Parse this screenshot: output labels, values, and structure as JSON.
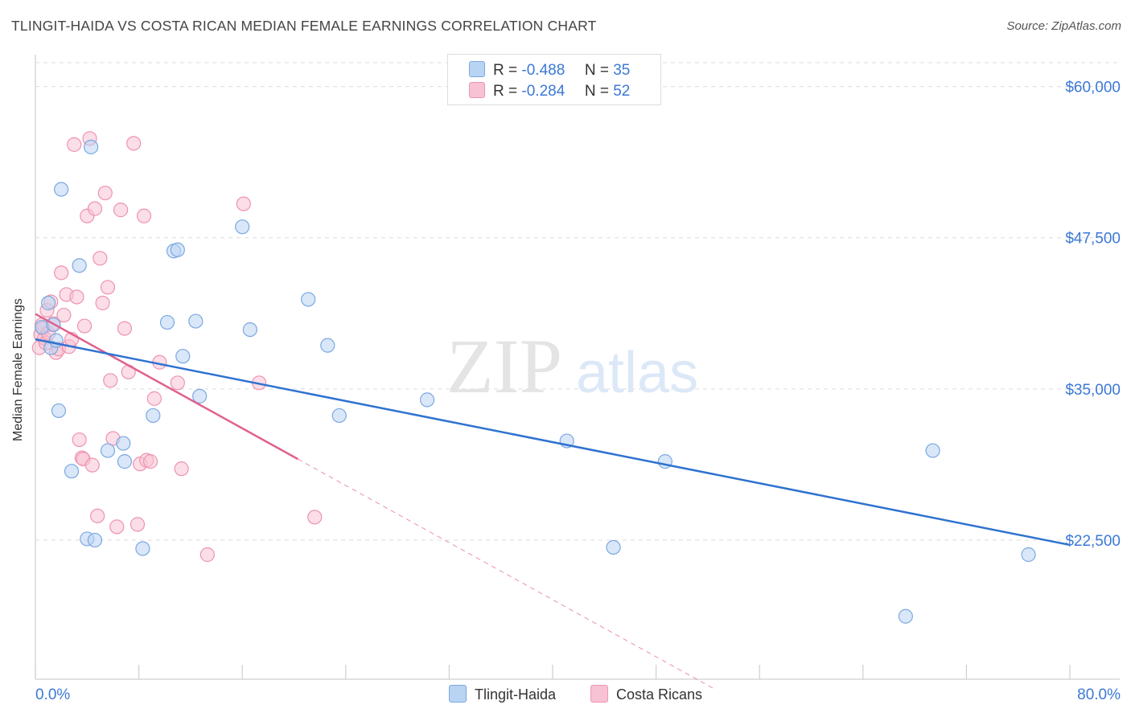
{
  "title": "TLINGIT-HAIDA VS COSTA RICAN MEDIAN FEMALE EARNINGS CORRELATION CHART",
  "source": "Source: ZipAtlas.com",
  "watermark": {
    "zip": "ZIP",
    "atlas": "atlas"
  },
  "legend": {
    "r_label": "R =",
    "n_label": "N =",
    "rows": [
      {
        "r": "-0.488",
        "n": "35"
      },
      {
        "r": "-0.284",
        "n": "52"
      }
    ]
  },
  "bottom_legend": {
    "series1": "Tlingit-Haida",
    "series2": "Costa Ricans"
  },
  "colors": {
    "blue_fill": "#b9d3f3",
    "blue_stroke": "#7ba8e2",
    "blue_line": "#2f72d0",
    "pink_fill": "#f7c3d4",
    "pink_stroke": "#ee93b0",
    "pink_line": "#e0618e",
    "axis_text": "#3b78d6"
  },
  "chart_data": {
    "type": "scatter",
    "title": "TLINGIT-HAIDA VS COSTA RICAN MEDIAN FEMALE EARNINGS CORRELATION CHART",
    "xlabel": "",
    "ylabel": "Median Female Earnings",
    "xlim": [
      0,
      80
    ],
    "ylim": [
      11000,
      62500
    ],
    "x_tick_labels": [
      "0.0%",
      "80.0%"
    ],
    "y_ticks": [
      {
        "value": 22500,
        "label": "$22,500"
      },
      {
        "value": 35000,
        "label": "$35,000"
      },
      {
        "value": 47500,
        "label": "$47,500"
      },
      {
        "value": 60000,
        "label": "$60,000"
      }
    ],
    "series": [
      {
        "name": "Tlingit-Haida",
        "r": -0.488,
        "n": 35,
        "trend": {
          "x": [
            0,
            80
          ],
          "y": [
            39100,
            22100
          ]
        },
        "points": [
          [
            0.5,
            40100
          ],
          [
            1.0,
            42100
          ],
          [
            1.2,
            38400
          ],
          [
            1.4,
            40300
          ],
          [
            1.6,
            39000
          ],
          [
            1.8,
            33200
          ],
          [
            2.0,
            51500
          ],
          [
            2.8,
            28200
          ],
          [
            3.4,
            45200
          ],
          [
            4.0,
            22600
          ],
          [
            4.3,
            55000
          ],
          [
            4.6,
            22500
          ],
          [
            5.6,
            29900
          ],
          [
            6.8,
            30500
          ],
          [
            6.9,
            29000
          ],
          [
            8.3,
            21800
          ],
          [
            9.1,
            32800
          ],
          [
            10.2,
            40500
          ],
          [
            10.7,
            46400
          ],
          [
            11.0,
            46500
          ],
          [
            11.4,
            37700
          ],
          [
            12.4,
            40600
          ],
          [
            12.7,
            34400
          ],
          [
            16.0,
            48400
          ],
          [
            16.6,
            39900
          ],
          [
            21.1,
            42400
          ],
          [
            22.6,
            38600
          ],
          [
            23.5,
            32800
          ],
          [
            30.3,
            34100
          ],
          [
            41.1,
            30700
          ],
          [
            44.7,
            21900
          ],
          [
            48.7,
            29000
          ],
          [
            67.3,
            16200
          ],
          [
            69.4,
            29900
          ],
          [
            76.8,
            21300
          ]
        ]
      },
      {
        "name": "Costa Ricans",
        "r": -0.284,
        "n": 52,
        "trend": {
          "x": [
            0,
            20.3
          ],
          "y": [
            41200,
            29200
          ]
        },
        "trend_extension": {
          "x": [
            20.3,
            52.5
          ],
          "y": [
            29200,
            10200
          ]
        },
        "points": [
          [
            0.3,
            38400
          ],
          [
            0.4,
            39500
          ],
          [
            0.5,
            40300
          ],
          [
            0.6,
            40000
          ],
          [
            0.7,
            39200
          ],
          [
            0.8,
            38800
          ],
          [
            0.9,
            41500
          ],
          [
            1.0,
            39600
          ],
          [
            1.2,
            42200
          ],
          [
            1.4,
            40400
          ],
          [
            1.6,
            38000
          ],
          [
            1.8,
            38300
          ],
          [
            2.0,
            44600
          ],
          [
            2.2,
            41100
          ],
          [
            2.4,
            42800
          ],
          [
            2.6,
            38500
          ],
          [
            2.8,
            39100
          ],
          [
            3.0,
            55200
          ],
          [
            3.2,
            42600
          ],
          [
            3.4,
            30800
          ],
          [
            3.6,
            29300
          ],
          [
            3.7,
            29200
          ],
          [
            3.8,
            40200
          ],
          [
            4.0,
            49300
          ],
          [
            4.2,
            55700
          ],
          [
            4.4,
            28700
          ],
          [
            4.6,
            49900
          ],
          [
            4.8,
            24500
          ],
          [
            5.0,
            45800
          ],
          [
            5.2,
            42100
          ],
          [
            5.4,
            51200
          ],
          [
            5.6,
            43400
          ],
          [
            5.8,
            35700
          ],
          [
            6.0,
            30900
          ],
          [
            6.3,
            23600
          ],
          [
            6.6,
            49800
          ],
          [
            6.9,
            40000
          ],
          [
            7.2,
            36400
          ],
          [
            7.6,
            55300
          ],
          [
            7.9,
            23800
          ],
          [
            8.1,
            28800
          ],
          [
            8.4,
            49300
          ],
          [
            8.6,
            29100
          ],
          [
            8.9,
            29000
          ],
          [
            9.2,
            34200
          ],
          [
            9.6,
            37200
          ],
          [
            11.0,
            35500
          ],
          [
            11.3,
            28400
          ],
          [
            13.3,
            21300
          ],
          [
            16.1,
            50300
          ],
          [
            17.3,
            35500
          ],
          [
            21.6,
            24400
          ]
        ]
      }
    ]
  }
}
